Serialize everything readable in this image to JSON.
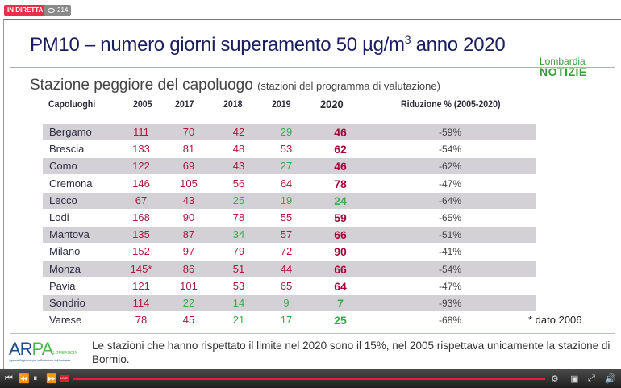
{
  "stream": {
    "live_label": "IN DIRETTA",
    "viewers": "214"
  },
  "slide": {
    "title_main": "PM10 – numero giorni superamento 50 ",
    "title_unit": "µg/m",
    "title_sup": "3",
    "title_tail": " anno 2020",
    "subtitle": "Stazione peggiore del capoluogo ",
    "subtitle_note": "(stazioni del programma di valutazione)",
    "brand": {
      "line1": "Lombardia",
      "line2": "NOTIZIE"
    },
    "columns": [
      "Capoluoghi",
      "2005",
      "2017",
      "2018",
      "2019",
      "2020",
      "Riduzione % (2005-2020)"
    ],
    "rows": [
      {
        "city": "Bergamo",
        "v": [
          "111",
          "70",
          "42",
          "29",
          "46"
        ],
        "rid": "-59%"
      },
      {
        "city": "Brescia",
        "v": [
          "133",
          "81",
          "48",
          "53",
          "62"
        ],
        "rid": "-54%"
      },
      {
        "city": "Como",
        "v": [
          "122",
          "69",
          "43",
          "27",
          "46"
        ],
        "rid": "-62%"
      },
      {
        "city": "Cremona",
        "v": [
          "146",
          "105",
          "56",
          "64",
          "78"
        ],
        "rid": "-47%"
      },
      {
        "city": "Lecco",
        "v": [
          "67",
          "43",
          "25",
          "19",
          "24"
        ],
        "rid": "-64%"
      },
      {
        "city": "Lodi",
        "v": [
          "168",
          "90",
          "78",
          "55",
          "59"
        ],
        "rid": "-65%"
      },
      {
        "city": "Mantova",
        "v": [
          "135",
          "87",
          "34",
          "57",
          "66"
        ],
        "rid": "-51%"
      },
      {
        "city": "Milano",
        "v": [
          "152",
          "97",
          "79",
          "72",
          "90"
        ],
        "rid": "-41%"
      },
      {
        "city": "Monza",
        "v": [
          "145*",
          "86",
          "51",
          "44",
          "66"
        ],
        "rid": "-54%"
      },
      {
        "city": "Pavia",
        "v": [
          "121",
          "101",
          "53",
          "65",
          "64"
        ],
        "rid": "-47%"
      },
      {
        "city": "Sondrio",
        "v": [
          "114",
          "22",
          "14",
          "9",
          "7"
        ],
        "rid": "-93%"
      },
      {
        "city": "Varese",
        "v": [
          "78",
          "45",
          "21",
          "17",
          "25"
        ],
        "rid": "-68%"
      }
    ],
    "note": "* dato 2006",
    "arpa": {
      "name": "ARPA",
      "region": "LOMBARDIA",
      "tagline": "Agenzia Regionale per la Protezione dell'Ambiente"
    },
    "footer": "Le stazioni che hanno rispettato il limite nel 2020 sono il 15%, nel 2005 rispettava unicamente la stazione di Bormio."
  },
  "player": {
    "live_badge": "LIVE"
  },
  "colors": {
    "over": "#b0163f",
    "under": "#3aaa4a",
    "title": "#1b1f5e",
    "shade": "#d3d1d5"
  }
}
